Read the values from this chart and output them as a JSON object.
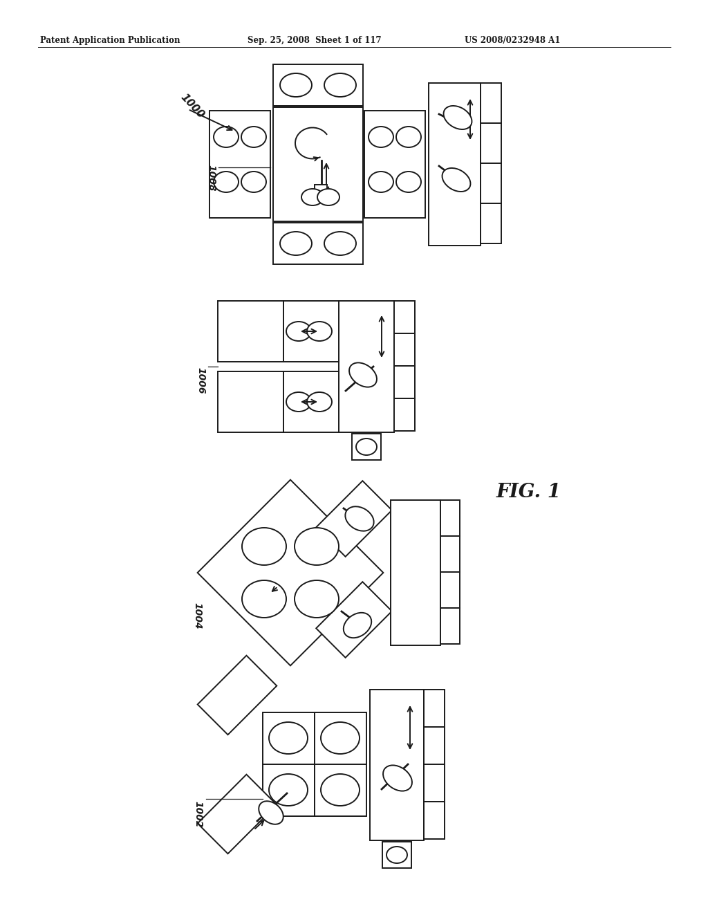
{
  "bg_color": "#ffffff",
  "line_color": "#1a1a1a",
  "header_left": "Patent Application Publication",
  "header_center": "Sep. 25, 2008  Sheet 1 of 117",
  "header_right": "US 2008/0232948 A1",
  "fig_label": "FIG. 1",
  "lw": 1.4
}
